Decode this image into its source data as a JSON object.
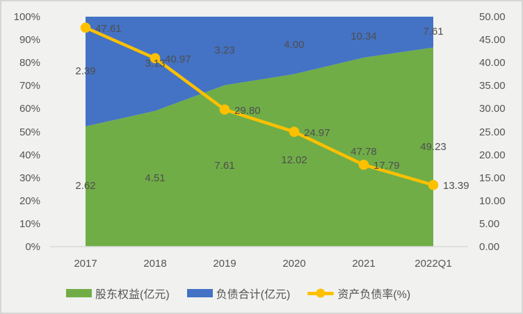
{
  "chart_data": {
    "type": "area",
    "subtype": "100% stacked area with secondary-axis line",
    "title": "",
    "categories": [
      "2017",
      "2018",
      "2019",
      "2020",
      "2021",
      "2022Q1"
    ],
    "series": [
      {
        "name": "股东权益(亿元)",
        "chart_type": "area",
        "color": "#70AD47",
        "values": [
          2.62,
          4.51,
          7.61,
          12.02,
          47.78,
          49.23
        ],
        "data_labels": [
          "2.62",
          "4.51",
          "7.61",
          "12.02",
          "47.78",
          "49.23"
        ]
      },
      {
        "name": "负债合计(亿元)",
        "chart_type": "area",
        "color": "#4472C4",
        "values": [
          2.39,
          3.13,
          3.23,
          4.0,
          10.34,
          7.61
        ],
        "data_labels": [
          "2.39",
          "3.13",
          "3.23",
          "4.00",
          "10.34",
          "7.61"
        ]
      },
      {
        "name": "资产负债率(%)",
        "chart_type": "line",
        "color": "#FFC000",
        "axis": "right",
        "values": [
          47.61,
          40.97,
          29.8,
          24.97,
          17.79,
          13.39
        ],
        "data_labels": [
          "47.61",
          "40.97",
          "29.80",
          "24.97",
          "17.79",
          "13.39"
        ]
      }
    ],
    "left_axis": {
      "min": 0,
      "max": 100,
      "step": 10,
      "unit": "%",
      "tick_labels": [
        "100%",
        "90%",
        "80%",
        "70%",
        "60%",
        "50%",
        "40%",
        "30%",
        "20%",
        "10%",
        "0%"
      ]
    },
    "right_axis": {
      "min": 0,
      "max": 50,
      "step": 5,
      "tick_labels": [
        "50.00",
        "45.00",
        "40.00",
        "35.00",
        "30.00",
        "25.00",
        "20.00",
        "15.00",
        "10.00",
        "5.00",
        "0.00"
      ]
    },
    "grid": false,
    "legend_position": "bottom"
  },
  "colors": {
    "background": "#F1F1F0",
    "border": "#D5D5D3",
    "axis_text": "#545454",
    "data_label_text": "#4E4E4E",
    "axis_line": "#D9D9D9"
  }
}
